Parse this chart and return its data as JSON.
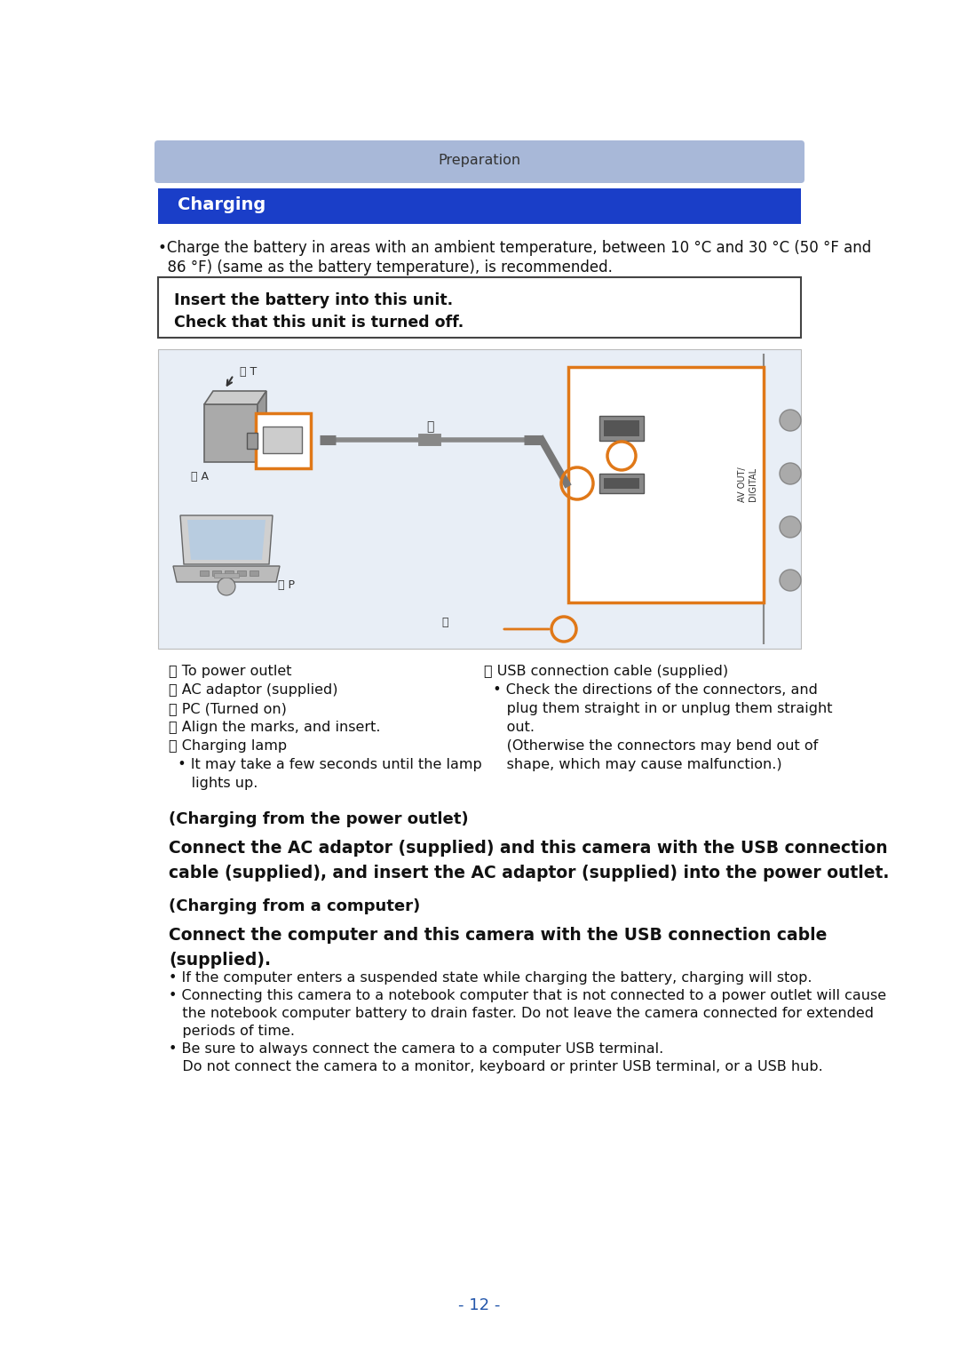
{
  "page_bg": "#ffffff",
  "prep_bar_color": "#a8b8d8",
  "prep_bar_text": "Preparation",
  "prep_text_color": "#333333",
  "charging_bar_color": "#1a3ec8",
  "charging_text": "Charging",
  "charging_text_color": "#ffffff",
  "bullet1": "•Charge the battery in areas with an ambient temperature, between 10 °C and 30 °C (50 °F and",
  "bullet1b": "  86 °F) (same as the battery temperature), is recommended.",
  "box_line1": "Insert the battery into this unit.",
  "box_line2": "Check that this unit is turned off.",
  "diag_bg": "#e8eef6",
  "orange": "#e07818",
  "label_A": "Ⓐ To power outlet",
  "label_B": "Ⓑ AC adaptor (supplied)",
  "label_C": "Ⓒ PC (Turned on)",
  "label_D": "ⓓ Align the marks, and insert.",
  "label_E": "Ⓔ Charging lamp",
  "label_E1": "  • It may take a few seconds until the lamp",
  "label_E2": "     lights up.",
  "label_F": "Ⓕ USB connection cable (supplied)",
  "label_F1": "  • Check the directions of the connectors, and",
  "label_F2": "     plug them straight in or unplug them straight",
  "label_F3": "     out.",
  "label_F4": "     (Otherwise the connectors may bend out of",
  "label_F5": "     shape, which may cause malfunction.)",
  "sec1_title": "(Charging from the power outlet)",
  "sec1_body1": "Connect the AC adaptor (supplied) and this camera with the USB connection",
  "sec1_body2": "cable (supplied), and insert the AC adaptor (supplied) into the power outlet.",
  "sec2_title": "(Charging from a computer)",
  "sec2_body1": "Connect the computer and this camera with the USB connection cable",
  "sec2_body2": "(supplied).",
  "bullets2": [
    "• If the computer enters a suspended state while charging the battery, charging will stop.",
    "• Connecting this camera to a notebook computer that is not connected to a power outlet will cause",
    "   the notebook computer battery to drain faster. Do not leave the camera connected for extended",
    "   periods of time.",
    "• Be sure to always connect the camera to a computer USB terminal.",
    "   Do not connect the camera to a monitor, keyboard or printer USB terminal, or a USB hub."
  ],
  "page_num": "- 12 -",
  "page_num_color": "#2255aa"
}
